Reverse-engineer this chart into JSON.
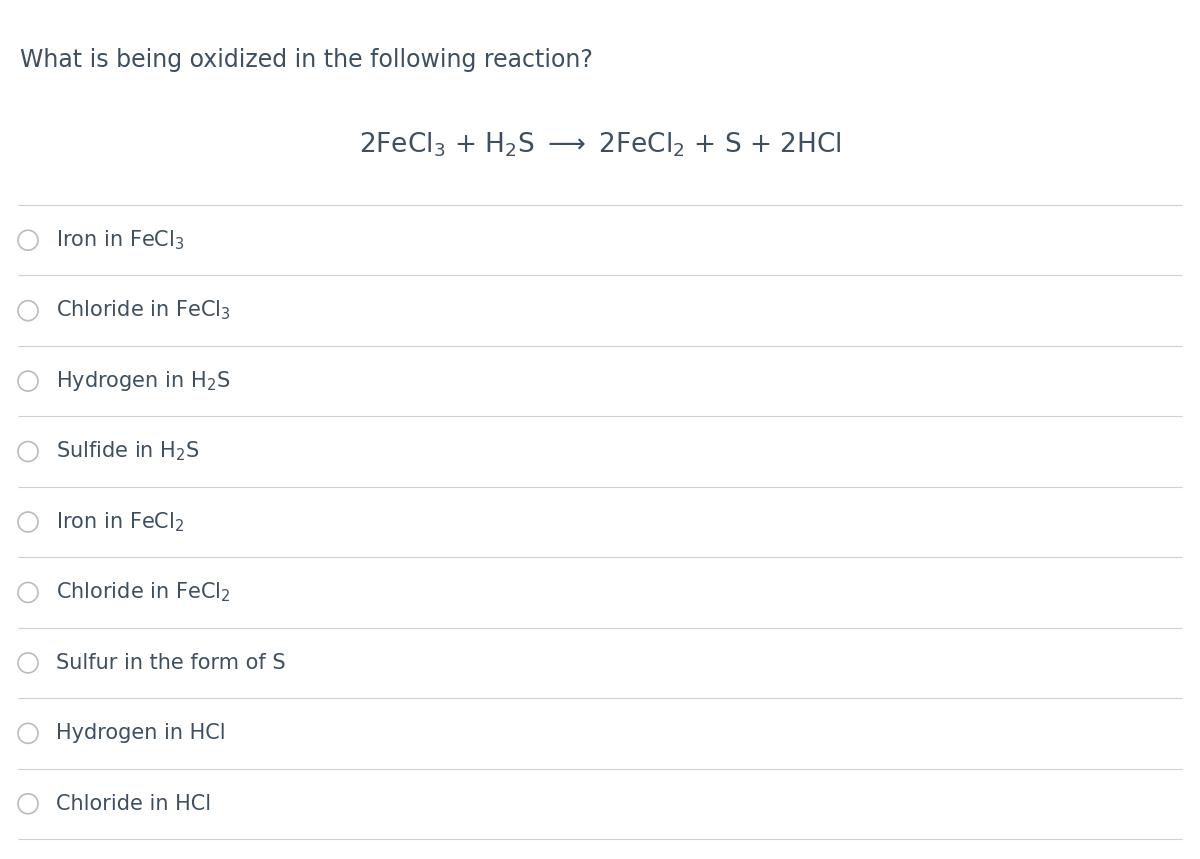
{
  "title": "What is being oxidized in the following reaction?",
  "title_fontsize": 17,
  "title_color": "#3d4f60",
  "background_color": "#ffffff",
  "reaction_str": "2FeCl$_3$ + H$_2$S $\\longrightarrow$ 2FeCl$_2$ + S + 2HCl",
  "reaction_fontsize": 19,
  "reaction_color": "#3d4f60",
  "options": [
    {
      "label": "Iron in FeCl$_3$"
    },
    {
      "label": "Chloride in FeCl$_3$"
    },
    {
      "label": "Hydrogen in H$_2$S"
    },
    {
      "label": "Sulfide in H$_2$S"
    },
    {
      "label": "Iron in FeCl$_2$"
    },
    {
      "label": "Chloride in FeCl$_2$"
    },
    {
      "label": "Sulfur in the form of S"
    },
    {
      "label": "Hydrogen in HCl"
    },
    {
      "label": "Chloride in HCl"
    }
  ],
  "option_fontsize": 15,
  "option_color": "#3d4f60",
  "circle_color": "#bbbbbb",
  "circle_linewidth": 1.2,
  "divider_color": "#d0d0d0",
  "divider_linewidth": 0.8
}
